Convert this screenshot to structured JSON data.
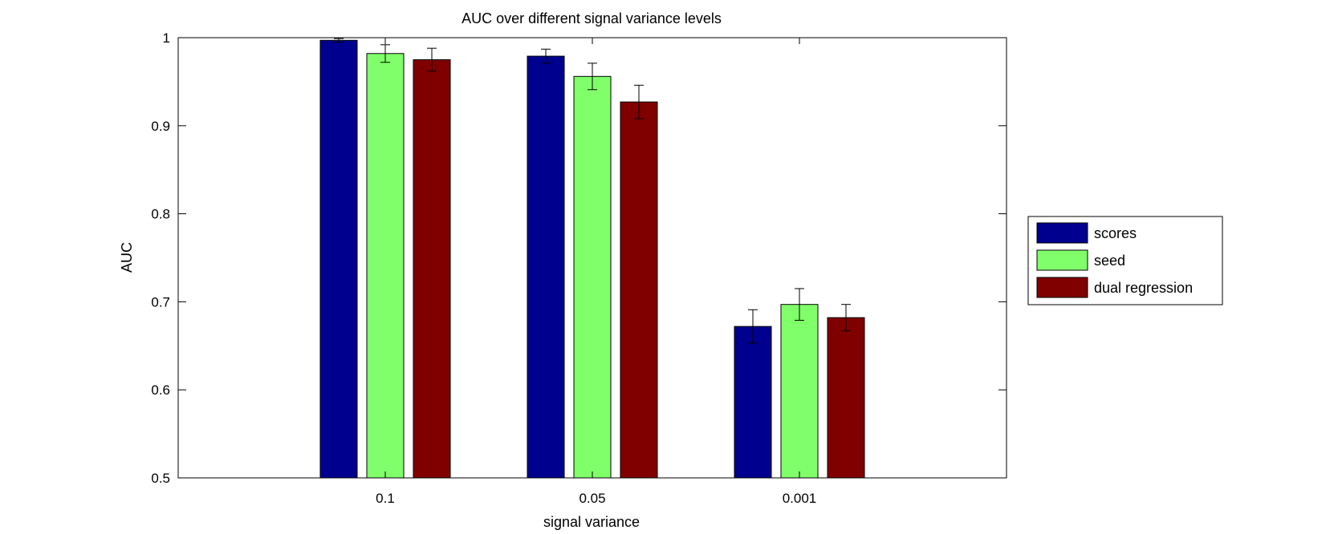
{
  "chart_data": {
    "type": "bar",
    "title": "AUC over different signal variance levels",
    "xlabel": "signal variance",
    "ylabel": "AUC",
    "categories": [
      "0.1",
      "0.05",
      "0.001"
    ],
    "ylim": [
      0.5,
      1
    ],
    "yticks": [
      "0.5",
      "0.6",
      "0.7",
      "0.8",
      "0.9",
      "1"
    ],
    "grid": false,
    "legend_position": "outside-right",
    "series": [
      {
        "name": "scores",
        "color": "#00008F",
        "values": [
          0.997,
          0.979,
          0.672
        ],
        "errors": [
          0.002,
          0.008,
          0.019
        ]
      },
      {
        "name": "seed",
        "color": "#80FF6A",
        "values": [
          0.982,
          0.956,
          0.697
        ],
        "errors": [
          0.01,
          0.015,
          0.018
        ]
      },
      {
        "name": "dual regression",
        "color": "#800000",
        "values": [
          0.975,
          0.927,
          0.682
        ],
        "errors": [
          0.013,
          0.019,
          0.015
        ]
      }
    ]
  }
}
